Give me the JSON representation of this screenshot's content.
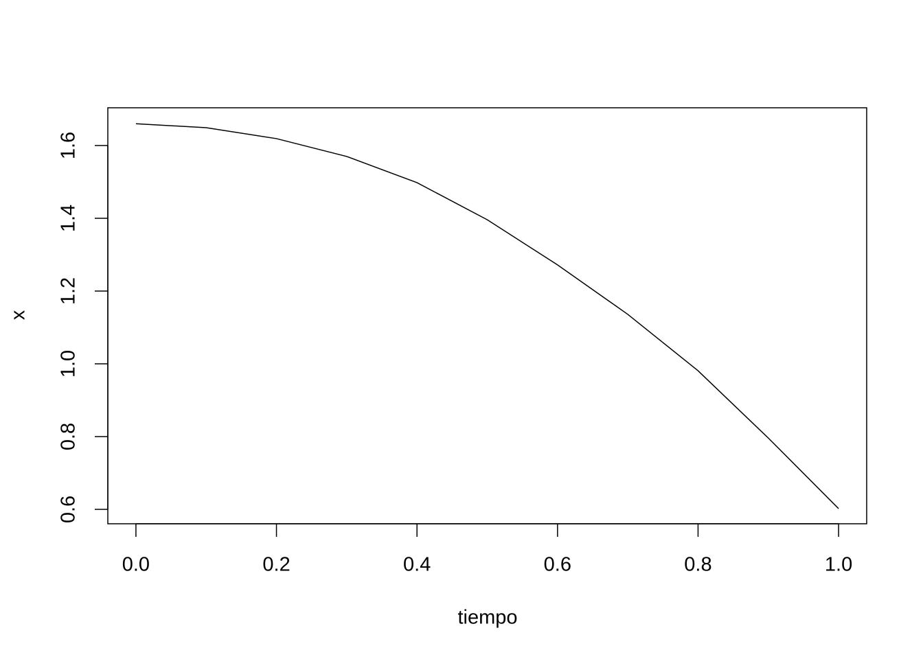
{
  "chart_data": {
    "type": "line",
    "x_label": "tiempo",
    "y_label": "x",
    "x": [
      0,
      0.1,
      0.2,
      0.3,
      0.4,
      0.5,
      0.6,
      0.7,
      0.8,
      0.9,
      1.0
    ],
    "series": [
      {
        "color": "#000000",
        "values": [
          1.66,
          1.649,
          1.619,
          1.57,
          1.498,
          1.396,
          1.272,
          1.136,
          0.981,
          0.796,
          0.602
        ]
      }
    ],
    "xlim": [
      -0.04,
      1.04
    ],
    "ylim": [
      0.5604,
      1.7038
    ],
    "xticks": [
      {
        "value": 0,
        "label": "0.0"
      },
      0.2,
      0.4,
      0.6,
      0.8,
      {
        "value": 1,
        "label": "1.0"
      }
    ],
    "yticks": [
      0.6,
      0.8,
      {
        "value": 1,
        "label": "1.0"
      },
      1.2,
      1.4,
      1.6
    ],
    "grid": false
  }
}
